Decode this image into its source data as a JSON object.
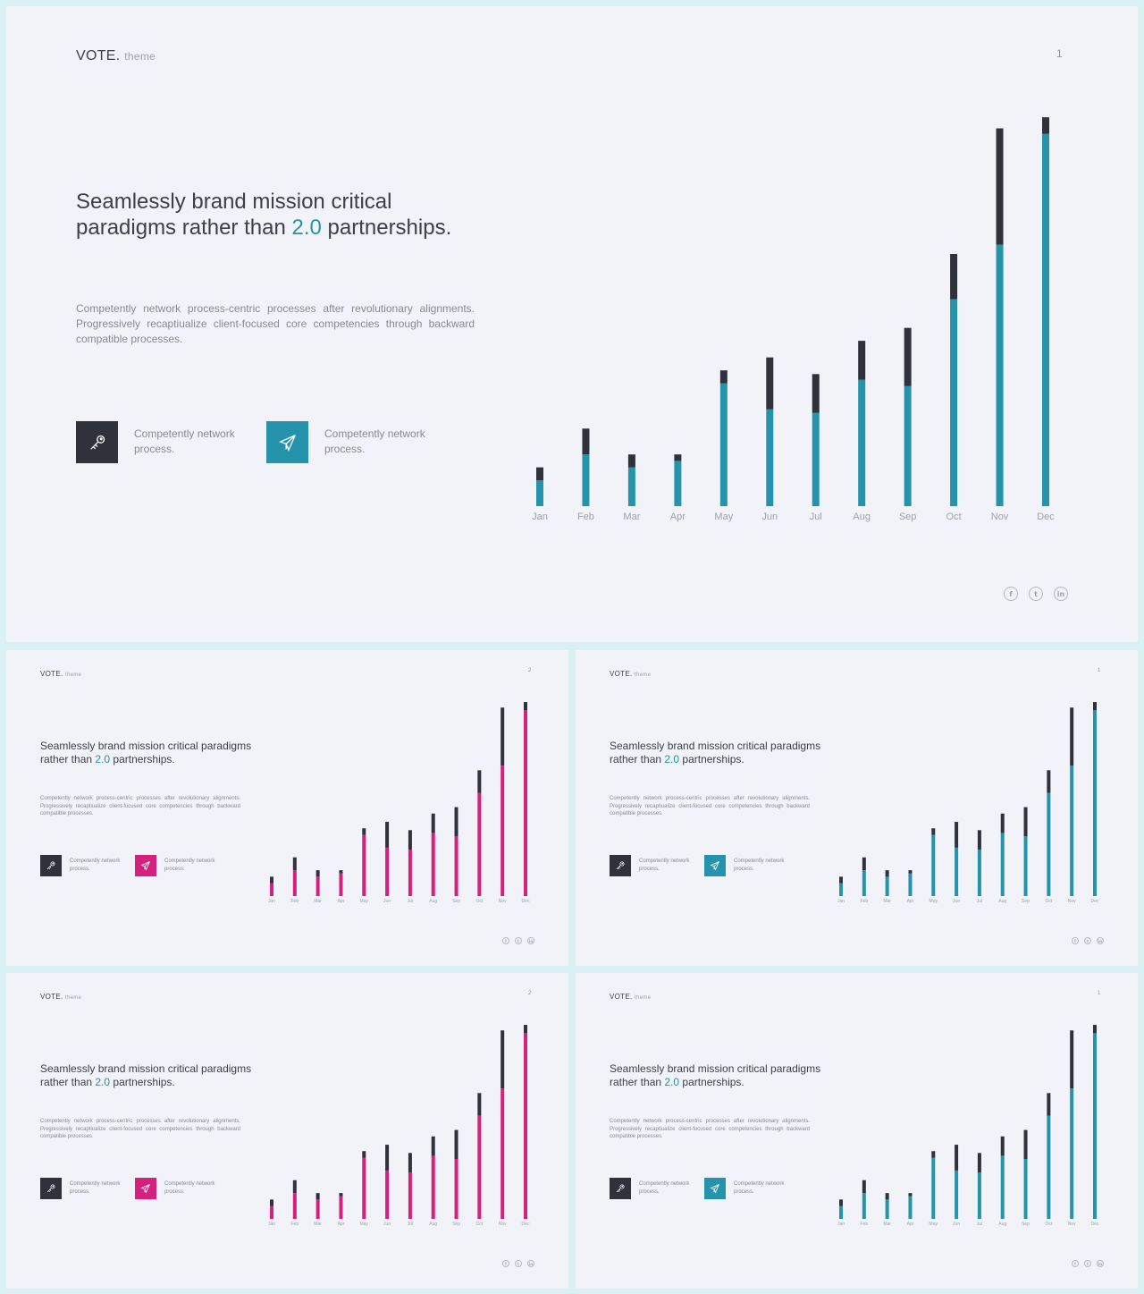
{
  "colors": {
    "dark": "#2f323b",
    "teal": "#2593ab",
    "magenta": "#d6207e"
  },
  "slides": [
    {
      "logo": "VOTE.",
      "logo_sub": "theme",
      "page": "1",
      "headline_pre": "Seamlessly brand mission critical paradigms rather than ",
      "headline_accent": "2.0",
      "headline_post": " partnerships.",
      "body": "Competently network process-centric processes after revolutionary alignments. Progressively recaptiualize client-focused core competencies through backward compatible processes.",
      "feature1": {
        "icon": "key-icon",
        "text": "Competently network process."
      },
      "feature2": {
        "icon": "paper-plane-icon",
        "text": "Competently network process."
      },
      "social": [
        "f",
        "t",
        "in"
      ]
    },
    {
      "logo": "VOTE.",
      "logo_sub": "theme",
      "page": "2",
      "headline_pre": "Seamlessly brand mission critical paradigms rather than ",
      "headline_accent": "2.0",
      "headline_post": " partnerships.",
      "body": "Competently network process-centric processes after revolutionary alignments. Progressively recaptiualize client-focused core competencies through backward compatible processes.",
      "feature1": {
        "icon": "key-icon",
        "text": "Competently network process."
      },
      "feature2": {
        "icon": "paper-plane-icon",
        "text": "Competently network process."
      },
      "social": [
        "f",
        "t",
        "in"
      ]
    },
    {
      "logo": "VOTE.",
      "logo_sub": "theme",
      "page": "1",
      "headline_pre": "Seamlessly brand mission critical paradigms rather than ",
      "headline_accent": "2.0",
      "headline_post": " partnerships.",
      "body": "Competently network process-centric processes after revolutionary alignments. Progressively recaptiualize client-focused core competencies through backward compatible processes.",
      "feature1": {
        "icon": "key-icon",
        "text": "Competently network process."
      },
      "feature2": {
        "icon": "paper-plane-icon",
        "text": "Competently network process."
      },
      "social": [
        "f",
        "t",
        "in"
      ]
    },
    {
      "logo": "VOTE.",
      "logo_sub": "theme",
      "page": "2",
      "headline_pre": "Seamlessly brand mission critical paradigms rather than ",
      "headline_accent": "2.0",
      "headline_post": " partnerships.",
      "body": "Competently network process-centric processes after revolutionary alignments. Progressively recaptiualize client-focused core competencies through backward compatible processes.",
      "feature1": {
        "icon": "key-icon",
        "text": "Competently network process."
      },
      "feature2": {
        "icon": "paper-plane-icon",
        "text": "Competently network process."
      },
      "social": [
        "f",
        "t",
        "in"
      ]
    },
    {
      "logo": "VOTE.",
      "logo_sub": "theme",
      "page": "1",
      "headline_pre": "Seamlessly brand mission critical paradigms rather than ",
      "headline_accent": "2.0",
      "headline_post": " partnerships.",
      "body": "Competently network process-centric processes after revolutionary alignments. Progressively recaptiualize client-focused core competencies through backward compatible processes.",
      "feature1": {
        "icon": "key-icon",
        "text": "Competently network process."
      },
      "feature2": {
        "icon": "paper-plane-icon",
        "text": "Competently network process."
      },
      "social": [
        "f",
        "t",
        "in"
      ]
    }
  ],
  "chart_data": {
    "type": "bar",
    "stacked": true,
    "categories": [
      "Jan",
      "Feb",
      "Mar",
      "Apr",
      "May",
      "Jun",
      "Jul",
      "Aug",
      "Sep",
      "Oct",
      "Nov",
      "Dec"
    ],
    "series": [
      {
        "values": [
          28,
          56,
          42,
          49,
          133,
          105,
          101,
          137,
          130,
          224,
          283,
          403
        ]
      },
      {
        "values": [
          14,
          28,
          14,
          7,
          14,
          56,
          42,
          42,
          63,
          49,
          126,
          18
        ]
      }
    ],
    "ylim": [
      0,
      425
    ],
    "grid": false,
    "legend": "none"
  }
}
